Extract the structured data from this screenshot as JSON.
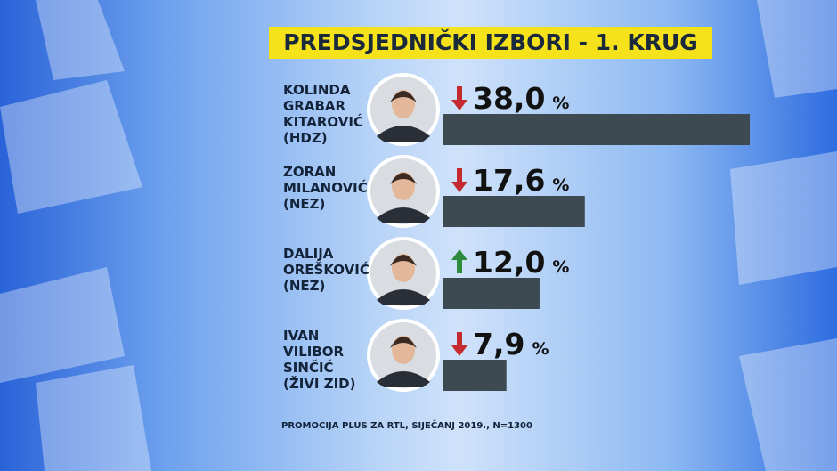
{
  "chart_data": {
    "type": "bar",
    "title": "PREDSJEDNIČKI IZBORI - 1. KRUG",
    "categories": [
      "KOLINDA GRABAR KITAROVIĆ (HDZ)",
      "ZORAN MILANOVIĆ (NEZ)",
      "DALIJA OREŠKOVIĆ (NEZ)",
      "IVAN VILIBOR SINČIĆ (ŽIVI ZID)"
    ],
    "values": [
      38.0,
      17.6,
      12.0,
      7.9
    ],
    "value_labels": [
      "38,0",
      "17,6",
      "12,0",
      "7,9"
    ],
    "unit": "%",
    "trend": [
      "down",
      "down",
      "up",
      "down"
    ],
    "color": "#3d4a52",
    "source": "PROMOCIJA PLUS ZA RTL, SIJEČANJ 2019., N=1300"
  }
}
